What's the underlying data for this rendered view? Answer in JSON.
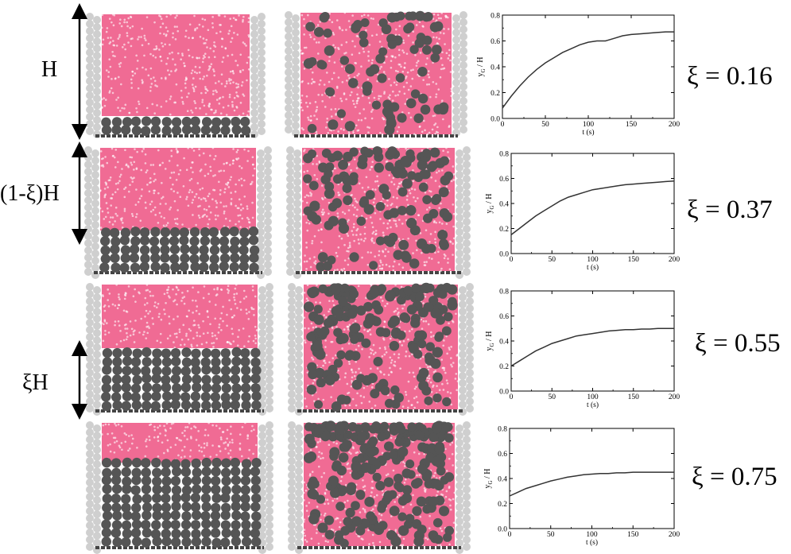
{
  "dimension_labels": {
    "total_height": "H",
    "upper_height": "(1-ξ)H",
    "lower_height": "ξH"
  },
  "rows": [
    {
      "xi_label": "ξ = 0.16"
    },
    {
      "xi_label": "ξ = 0.37"
    },
    {
      "xi_label": "ξ = 0.55"
    },
    {
      "xi_label": "ξ = 0.75"
    }
  ],
  "colors": {
    "small_particles": "#f06b94",
    "large_particles": "#555555",
    "wall_particles": "#cfcfcf",
    "curve": "#333333"
  },
  "chart_data": [
    {
      "type": "line",
      "xlabel": "t (s)",
      "ylabel": "y_G / H",
      "xlim": [
        0,
        200
      ],
      "ylim": [
        0,
        0.8
      ],
      "xticks": [
        "0",
        "50",
        "100",
        "150",
        "200"
      ],
      "yticks": [
        "0.0",
        "0.2",
        "0.4",
        "0.6",
        "0.8"
      ],
      "series": [
        {
          "x": [
            0,
            10,
            20,
            30,
            40,
            50,
            60,
            70,
            80,
            90,
            100,
            110,
            120,
            130,
            140,
            150,
            160,
            170,
            180,
            190,
            200
          ],
          "values": [
            0.08,
            0.17,
            0.25,
            0.32,
            0.38,
            0.43,
            0.47,
            0.51,
            0.54,
            0.57,
            0.59,
            0.6,
            0.6,
            0.62,
            0.64,
            0.65,
            0.655,
            0.66,
            0.665,
            0.67,
            0.67
          ]
        }
      ]
    },
    {
      "type": "line",
      "xlabel": "t (s)",
      "ylabel": "y_G / H",
      "xlim": [
        0,
        200
      ],
      "ylim": [
        0,
        0.8
      ],
      "xticks": [
        "0",
        "50",
        "100",
        "150",
        "200"
      ],
      "yticks": [
        "0.0",
        "0.2",
        "0.4",
        "0.6",
        "0.8"
      ],
      "series": [
        {
          "x": [
            0,
            10,
            20,
            30,
            40,
            50,
            60,
            70,
            80,
            90,
            100,
            110,
            120,
            130,
            140,
            150,
            160,
            170,
            180,
            190,
            200
          ],
          "values": [
            0.15,
            0.2,
            0.25,
            0.3,
            0.34,
            0.38,
            0.42,
            0.45,
            0.47,
            0.49,
            0.51,
            0.52,
            0.53,
            0.54,
            0.55,
            0.555,
            0.56,
            0.565,
            0.57,
            0.575,
            0.58
          ]
        }
      ]
    },
    {
      "type": "line",
      "xlabel": "t (s)",
      "ylabel": "y_G / H",
      "xlim": [
        0,
        200
      ],
      "ylim": [
        0,
        0.8
      ],
      "xticks": [
        "0",
        "50",
        "100",
        "150",
        "200"
      ],
      "yticks": [
        "0.0",
        "0.2",
        "0.4",
        "0.6",
        "0.8"
      ],
      "series": [
        {
          "x": [
            0,
            10,
            20,
            30,
            40,
            50,
            60,
            70,
            80,
            90,
            100,
            110,
            120,
            130,
            140,
            150,
            160,
            170,
            180,
            190,
            200
          ],
          "values": [
            0.2,
            0.24,
            0.28,
            0.32,
            0.35,
            0.38,
            0.4,
            0.42,
            0.44,
            0.45,
            0.46,
            0.47,
            0.48,
            0.485,
            0.49,
            0.49,
            0.495,
            0.495,
            0.5,
            0.5,
            0.5
          ]
        }
      ]
    },
    {
      "type": "line",
      "xlabel": "t (s)",
      "ylabel": "y_G / H",
      "xlim": [
        0,
        200
      ],
      "ylim": [
        0,
        0.8
      ],
      "xticks": [
        "0",
        "50",
        "100",
        "150",
        "200"
      ],
      "yticks": [
        "0.0",
        "0.2",
        "0.4",
        "0.6",
        "0.8"
      ],
      "series": [
        {
          "x": [
            0,
            10,
            20,
            30,
            40,
            50,
            60,
            70,
            80,
            90,
            100,
            110,
            120,
            130,
            140,
            150,
            160,
            170,
            180,
            190,
            200
          ],
          "values": [
            0.26,
            0.29,
            0.32,
            0.34,
            0.36,
            0.38,
            0.395,
            0.41,
            0.42,
            0.43,
            0.435,
            0.44,
            0.44,
            0.445,
            0.445,
            0.45,
            0.45,
            0.45,
            0.45,
            0.45,
            0.45
          ]
        }
      ]
    }
  ]
}
